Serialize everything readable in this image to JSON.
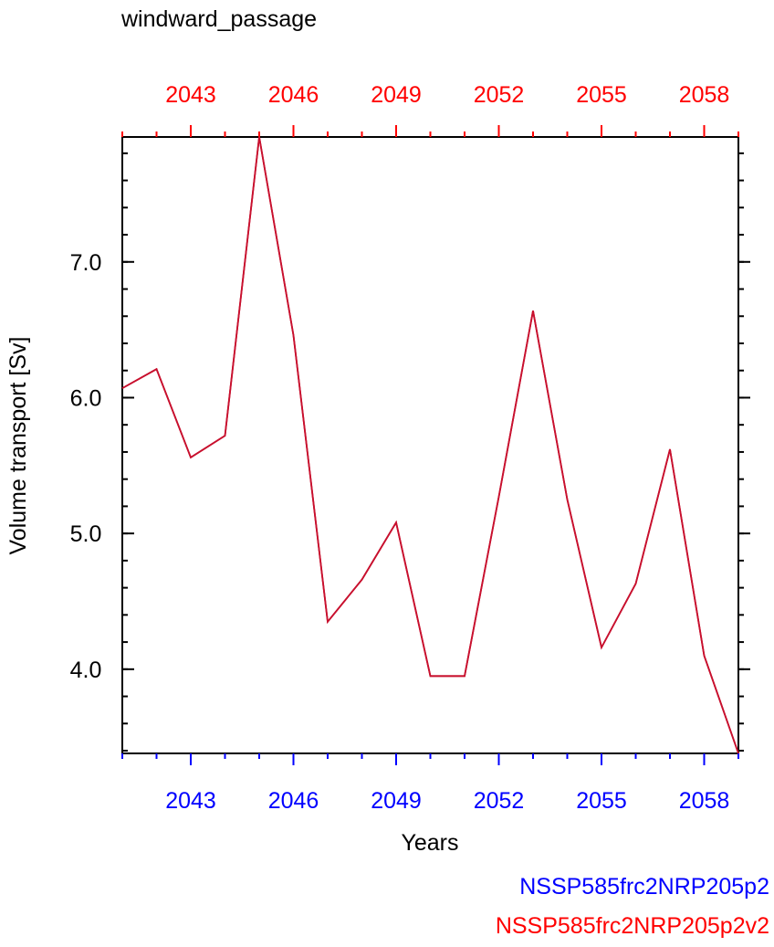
{
  "chart_data": {
    "type": "line",
    "title": "windward_passage",
    "xlabel": "Years",
    "ylabel": "Volume transport [Sv]",
    "x": [
      2041,
      2042,
      2043,
      2044,
      2045,
      2046,
      2047,
      2048,
      2049,
      2050,
      2051,
      2052,
      2053,
      2054,
      2055,
      2056,
      2057,
      2058,
      2059
    ],
    "series": [
      {
        "name": "NSSP585frc2NRP205p2",
        "color": "#0000ff",
        "values": [
          6.07,
          6.21,
          5.56,
          5.72,
          7.92,
          6.46,
          4.35,
          4.66,
          5.08,
          3.95,
          3.95,
          5.27,
          6.64,
          5.25,
          4.16,
          4.63,
          5.62,
          4.1,
          3.38
        ]
      },
      {
        "name": "NSSP585frc2NRP205p2v2",
        "color": "#ff0000",
        "values": [
          6.07,
          6.21,
          5.56,
          5.72,
          7.92,
          6.46,
          4.35,
          4.66,
          5.08,
          3.95,
          3.95,
          5.27,
          6.64,
          5.25,
          4.16,
          4.63,
          5.62,
          4.1,
          3.38
        ]
      }
    ],
    "xlim": [
      2041,
      2059
    ],
    "ylim": [
      3.38,
      7.92
    ],
    "x_ticks": [
      "2043",
      "2046",
      "2049",
      "2052",
      "2055",
      "2058"
    ],
    "y_ticks": [
      "4.0",
      "5.0",
      "6.0",
      "7.0"
    ],
    "bottom_axis_color": "#0000ff",
    "top_axis_color": "#ff0000",
    "line_color": "#c8102e",
    "grid": false,
    "legend_position": "bottom-right"
  }
}
